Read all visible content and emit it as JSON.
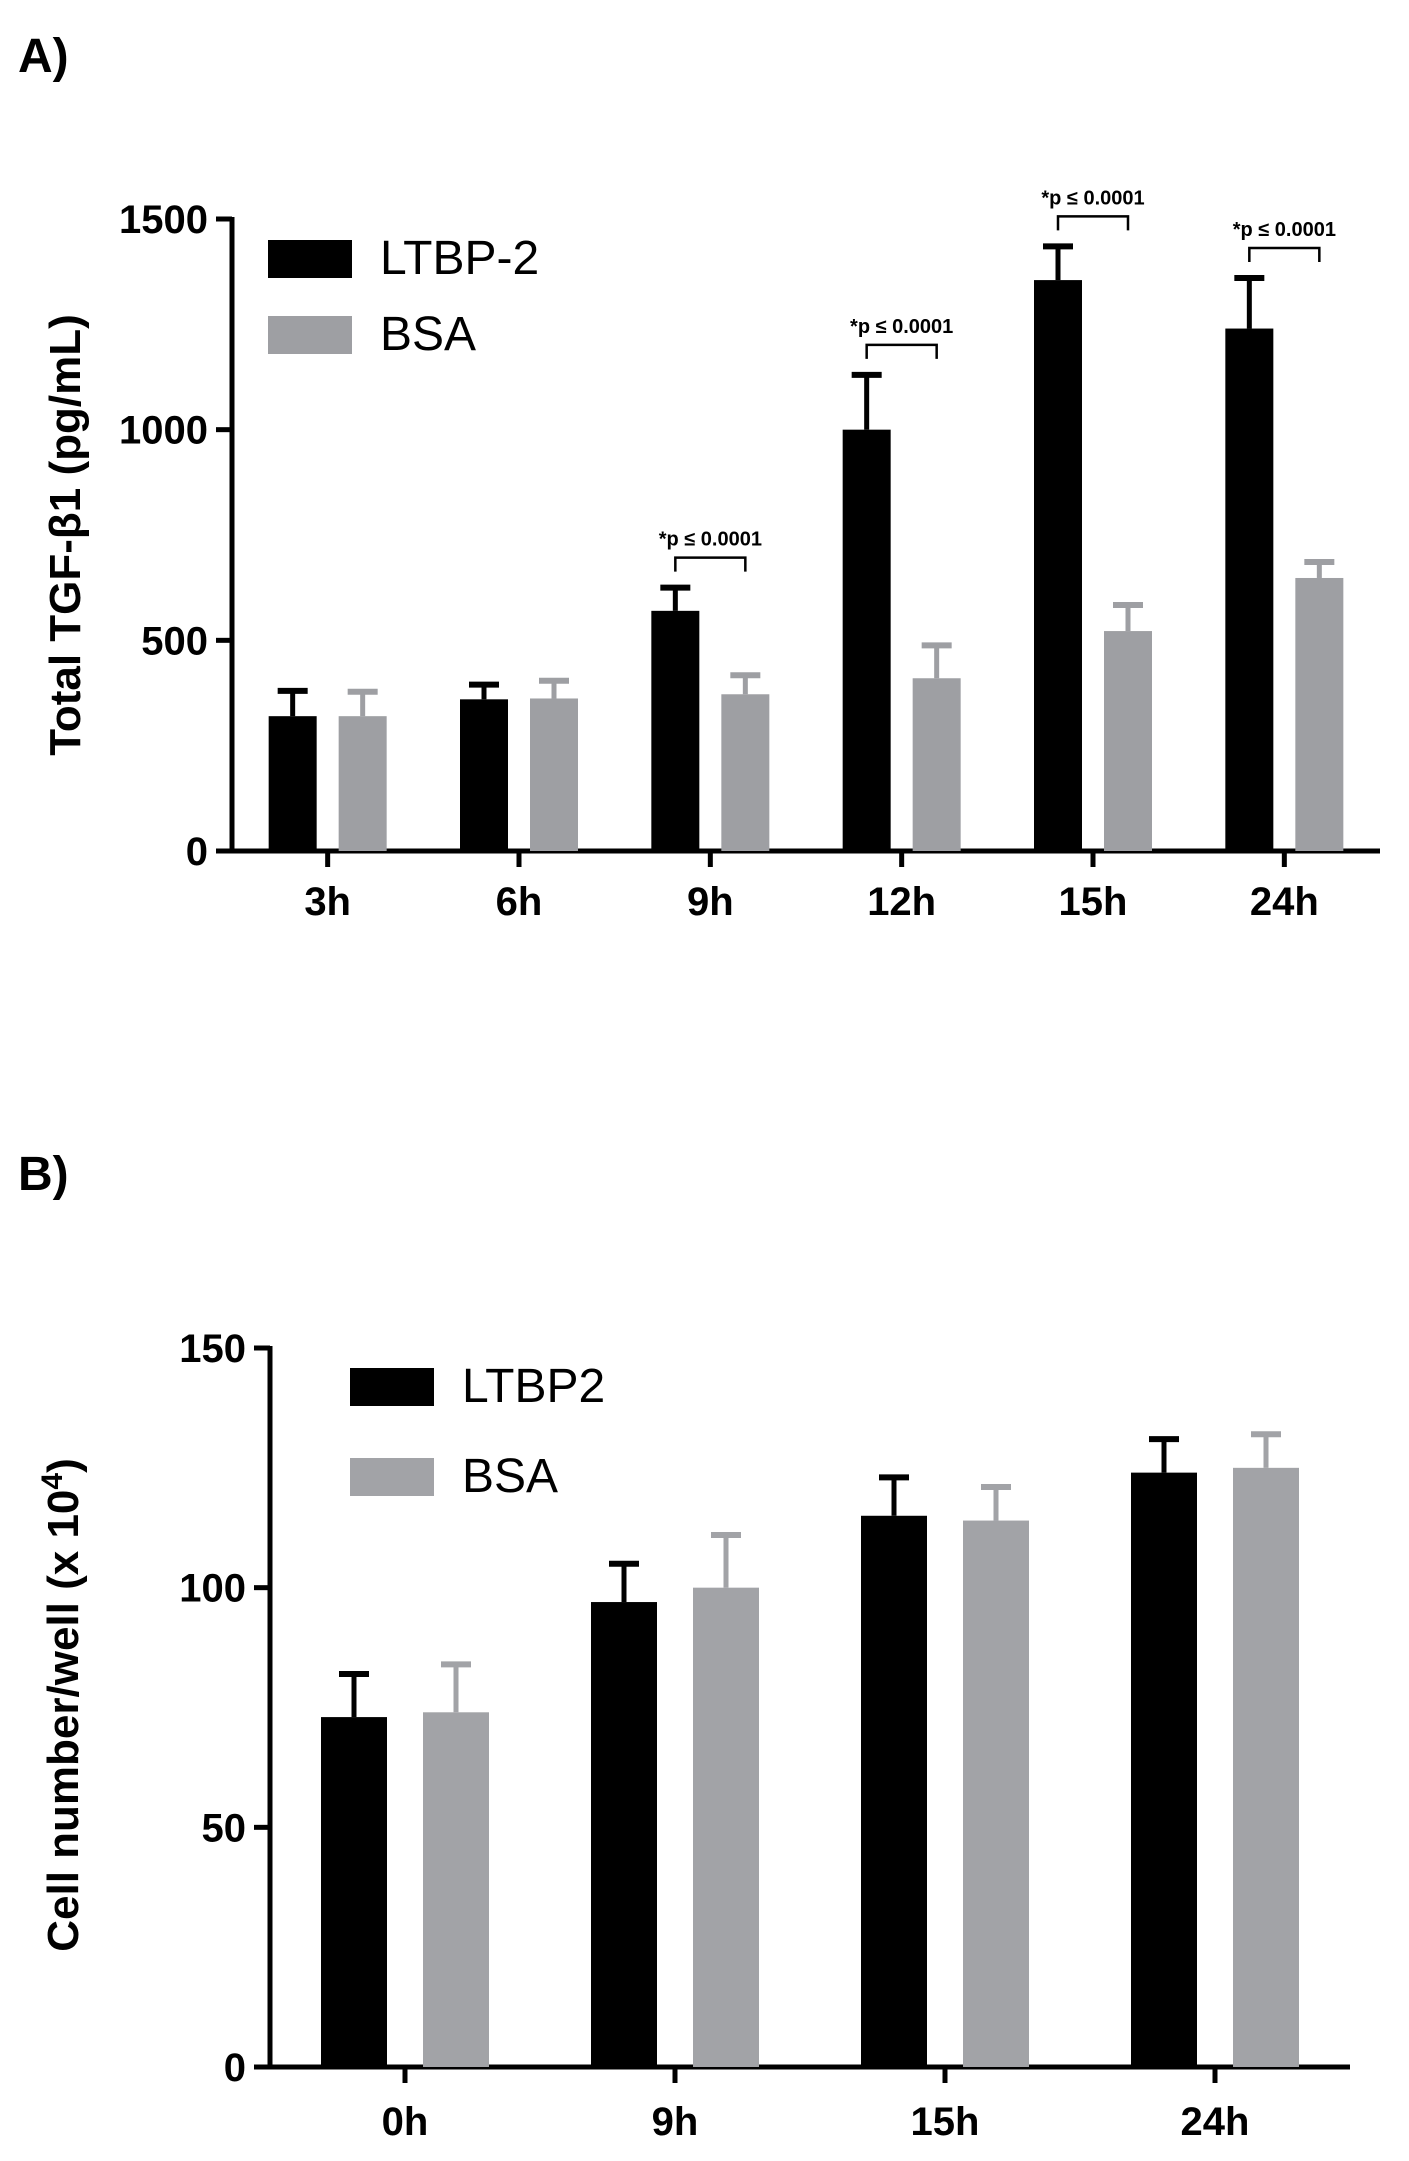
{
  "chart_data": [
    {
      "panel": "A)",
      "type": "bar",
      "categories": [
        "3h",
        "6h",
        "9h",
        "12h",
        "15h",
        "24h"
      ],
      "series": [
        {
          "name": "LTBP-2",
          "color": "#000000",
          "values": [
            320,
            360,
            570,
            1000,
            1355,
            1240
          ],
          "errors": [
            60,
            35,
            55,
            130,
            80,
            120
          ]
        },
        {
          "name": "BSA",
          "color": "#9e9fa3",
          "values": [
            320,
            362,
            372,
            410,
            522,
            648
          ],
          "errors": [
            58,
            42,
            45,
            78,
            62,
            38
          ]
        }
      ],
      "ylabel": "Total TGF-β1 (pg/mL)",
      "xlabel": "",
      "ylim": [
        0,
        1500
      ],
      "yticks": [
        0,
        500,
        1000,
        1500
      ],
      "legend": "top-left",
      "annotations": [
        {
          "category": "9h",
          "text": "*p ≤ 0.0001"
        },
        {
          "category": "12h",
          "text": "*p ≤ 0.0001"
        },
        {
          "category": "15h",
          "text": "*p ≤ 0.0001"
        },
        {
          "category": "24h",
          "text": "*p ≤ 0.0001"
        }
      ]
    },
    {
      "panel": "B)",
      "type": "bar",
      "categories": [
        "0h",
        "9h",
        "15h",
        "24h"
      ],
      "series": [
        {
          "name": "LTBP2",
          "color": "#000000",
          "values": [
            73,
            97,
            115,
            124
          ],
          "errors": [
            9,
            8,
            8,
            7
          ]
        },
        {
          "name": "BSA",
          "color": "#a2a3a7",
          "values": [
            74,
            100,
            114,
            125
          ],
          "errors": [
            10,
            11,
            7,
            7
          ]
        }
      ],
      "ylabel": "Cell number/well (x 10",
      "ylabel_superscript": "4",
      "ylabel_end": ")",
      "xlabel": "",
      "ylim": [
        0,
        150
      ],
      "yticks": [
        0,
        50,
        100,
        150
      ],
      "legend": "top-left"
    }
  ]
}
